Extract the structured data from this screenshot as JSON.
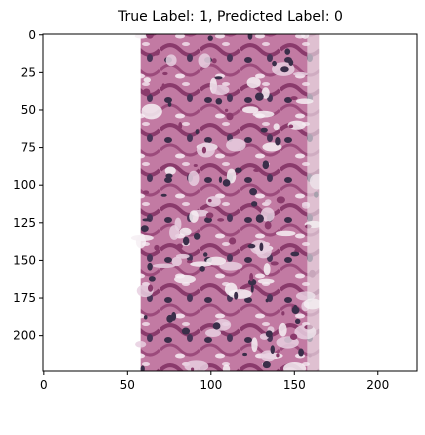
{
  "title": "True Label: 1, Predicted Label: 0",
  "image_description_colors": {
    "background": "#f7f5f6",
    "stroma": "#b0608e",
    "stroma_dark": "#8a3a6c",
    "nuclei": "#3b2e4a",
    "pale": "#e8cfe0"
  },
  "axes": {
    "x_ticks": [
      "0",
      "50",
      "100",
      "150",
      "200"
    ],
    "y_ticks": [
      "0",
      "25",
      "50",
      "75",
      "100",
      "125",
      "150",
      "175",
      "200"
    ],
    "x_range": [
      -0.5,
      223.5
    ],
    "y_range": [
      223.5,
      -0.5
    ]
  },
  "tissue_strip": {
    "x_start": 58,
    "x_end": 165
  }
}
